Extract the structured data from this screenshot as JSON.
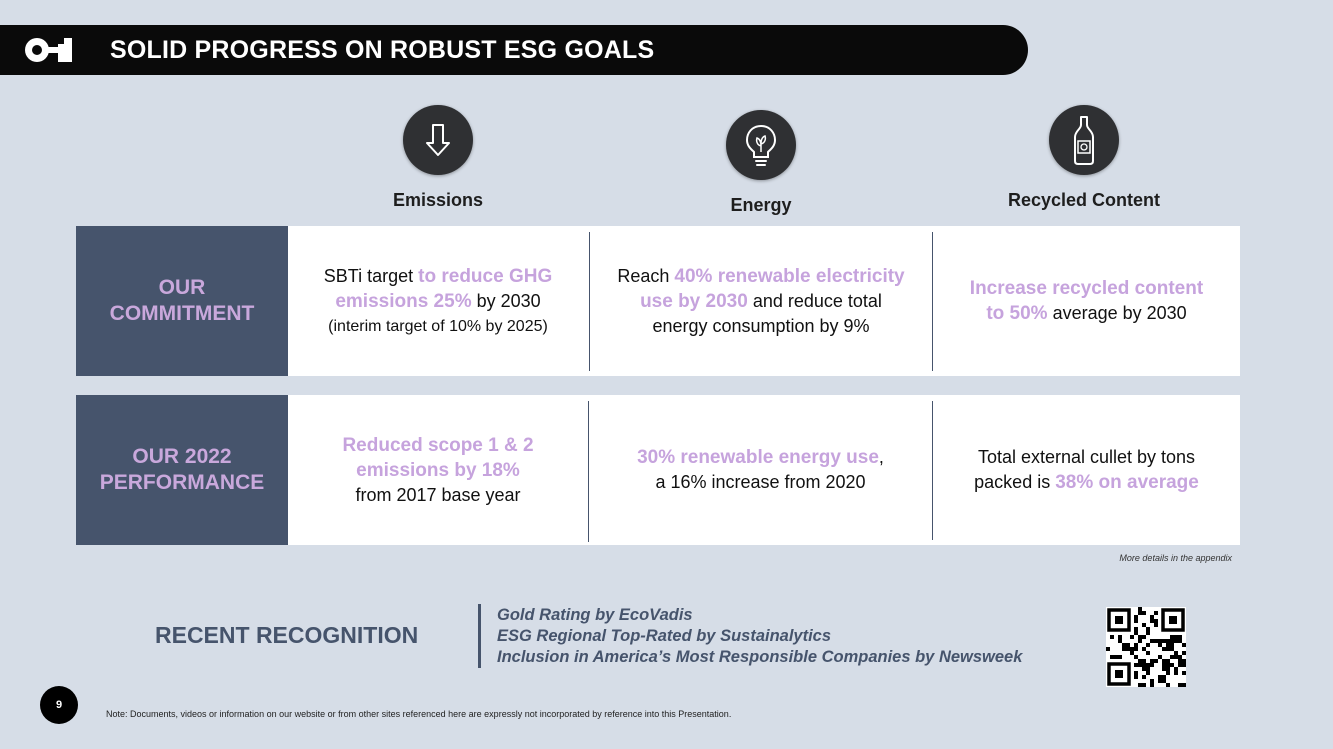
{
  "header": {
    "title": "SOLID PROGRESS ON ROBUST ESG GOALS"
  },
  "pillars": [
    {
      "label": "Emissions",
      "icon": "down-arrow-icon"
    },
    {
      "label": "Energy",
      "icon": "lightbulb-icon"
    },
    {
      "label": "Recycled Content",
      "icon": "bottle-icon"
    }
  ],
  "commitment": {
    "head_line1": "OUR",
    "head_line2": "COMMITMENT",
    "emissions": {
      "pre": "SBTi target ",
      "hl1": "to reduce GHG",
      "hl2": "emissions 25%",
      "post": " by 2030",
      "note": "(interim target of 10% by 2025)"
    },
    "energy": {
      "pre": "Reach ",
      "hl1": "40% renewable electricity",
      "hl2": "use by 2030",
      "post": " and reduce total",
      "line3": "energy consumption by 9%"
    },
    "recycled": {
      "hl1": "Increase recycled content",
      "hl2": "to 50%",
      "post": " average by 2030"
    }
  },
  "performance": {
    "head_line1": "OUR 2022",
    "head_line2": "PERFORMANCE",
    "emissions": {
      "hl1": "Reduced scope 1 & 2",
      "hl2": "emissions by 18%",
      "line3": "from 2017 base year"
    },
    "energy": {
      "hl1": "30% renewable energy use",
      "post": ",",
      "line2": "a 16% increase from 2020"
    },
    "recycled": {
      "line1": "Total external cullet by tons",
      "pre": "packed is ",
      "hl": "38% on average"
    }
  },
  "appendix_note": "More details in the appendix",
  "recognition": {
    "title": "RECENT RECOGNITION",
    "items": [
      "Gold Rating by EcoVadis",
      "ESG Regional Top-Rated by Sustainalytics",
      "Inclusion in America’s Most Responsible Companies by Newsweek"
    ]
  },
  "page_number": "9",
  "footnote": "Note: Documents, videos or information on our website or from other sites referenced here are expressly not incorporated by reference into this Presentation.",
  "colors": {
    "background": "#d6dde7",
    "navy": "#46546c",
    "lavender": "#c6a3dd",
    "black": "#0a0a0a"
  }
}
